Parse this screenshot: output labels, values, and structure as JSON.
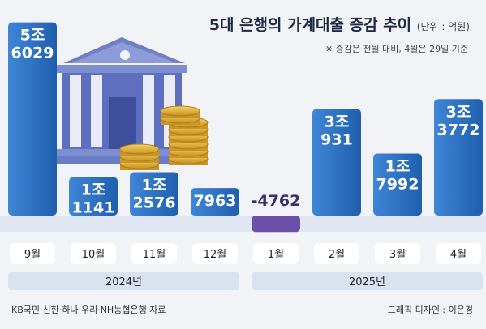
{
  "title": "5대 은행의 가계대출 증감 추이",
  "unit": "(단위 : 억원)",
  "note": "※ 증감은 전월 대비, 4월은 29일 기준",
  "source": "KB국민·신한·하나·우리·NH농협은행 자료",
  "credit": "그래픽 디자인 : 이은경",
  "colors": {
    "bar": "#2f76c8",
    "bar_top": "#3d8ad8",
    "negative_bar": "#6b4fa8",
    "label_pill": "#ffffff",
    "year_band": "#d9e2ef",
    "baseline": "#c9d6e8"
  },
  "chart_data": {
    "type": "bar",
    "unit": "억원",
    "categories": [
      "9월",
      "10월",
      "11월",
      "12월",
      "1월",
      "2월",
      "3월",
      "4월"
    ],
    "values": [
      56029,
      11141,
      12576,
      7963,
      -4762,
      30931,
      17992,
      33772
    ],
    "value_labels": [
      [
        "5조",
        "6029"
      ],
      [
        "1조",
        "1141"
      ],
      [
        "1조",
        "2576"
      ],
      [
        "7963"
      ],
      [
        "-4762"
      ],
      [
        "3조",
        "931"
      ],
      [
        "1조",
        "7992"
      ],
      [
        "3조",
        "3772"
      ]
    ],
    "year_groups": [
      {
        "label": "2024년",
        "categories": [
          "9월",
          "10월",
          "11월",
          "12월"
        ]
      },
      {
        "label": "2025년",
        "categories": [
          "1월",
          "2월",
          "3월",
          "4월"
        ]
      }
    ],
    "ylim": [
      -6000,
      60000
    ],
    "xlabel": "",
    "ylabel": ""
  },
  "illustration": {
    "bank": "bank-building-icon",
    "coins": "coin-stack-icon"
  }
}
